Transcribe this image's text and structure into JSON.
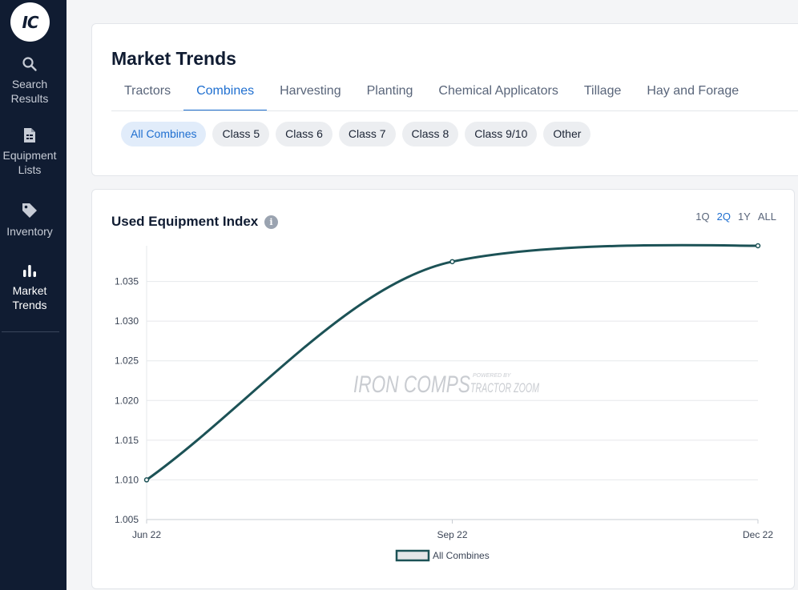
{
  "sidebar": {
    "logo_text": "IC",
    "items": [
      {
        "label": "Search\nResults",
        "icon": "search-icon"
      },
      {
        "label": "Equipment\nLists",
        "icon": "document-icon"
      },
      {
        "label": "Inventory",
        "icon": "tag-icon"
      },
      {
        "label": "Market\nTrends",
        "icon": "bar-chart-icon",
        "active": true
      }
    ]
  },
  "header": {
    "title": "Market Trends",
    "tabs": [
      "Tractors",
      "Combines",
      "Harvesting",
      "Planting",
      "Chemical Applicators",
      "Tillage",
      "Hay and Forage"
    ],
    "active_tab": "Combines",
    "chips": [
      "All Combines",
      "Class 5",
      "Class 6",
      "Class 7",
      "Class 8",
      "Class 9/10",
      "Other"
    ],
    "active_chip": "All Combines"
  },
  "chart_card": {
    "title": "Used Equipment Index",
    "info_icon": "info-icon",
    "ranges": [
      "1Q",
      "2Q",
      "1Y",
      "ALL"
    ],
    "active_range": "2Q",
    "watermark_main": "IRON COMPS",
    "watermark_powered": "POWERED BY",
    "watermark_sub": "TRACTOR ZOOM"
  },
  "colors": {
    "sidebar_bg": "#101c32",
    "accent": "#1f6fd0",
    "line": "#1c5256"
  },
  "chart_data": {
    "type": "line",
    "title": "Used Equipment Index",
    "xlabel": "",
    "ylabel": "",
    "categories": [
      "Jun 22",
      "Sep 22",
      "Dec 22"
    ],
    "series": [
      {
        "name": "All Combines",
        "values": [
          1.01,
          1.0375,
          1.0395
        ]
      }
    ],
    "yticks": [
      1.005,
      1.01,
      1.015,
      1.02,
      1.025,
      1.03,
      1.035
    ],
    "ylim": [
      1.005,
      1.0395
    ],
    "grid": true,
    "legend": "bottom-center"
  }
}
